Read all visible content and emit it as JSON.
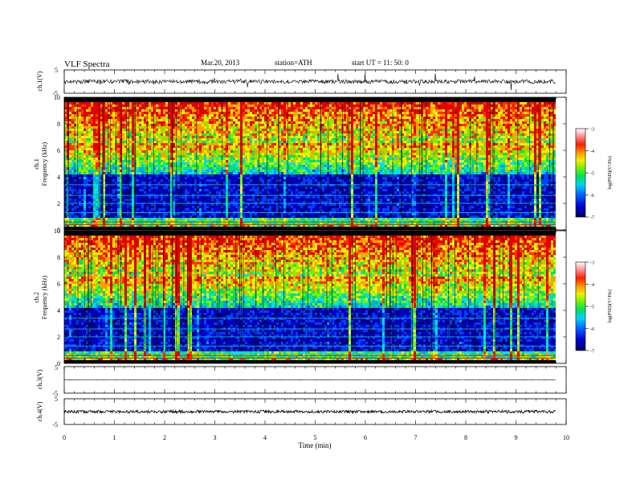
{
  "header": {
    "title": "VLF  Spectra",
    "date": "Mar.20, 2013",
    "station": "station=ATH",
    "start": "start  UT  =    11: 50: 0"
  },
  "chart_data": [
    {
      "type": "line",
      "name": "ch1-waveform",
      "ylabel": "ch.1(V)",
      "ylim": [
        -5,
        5
      ],
      "yticks": [
        "5",
        "-5"
      ],
      "xlim": [
        0,
        10
      ],
      "trace_range": [
        0,
        9.8
      ]
    },
    {
      "type": "heatmap",
      "name": "ch1-spectrogram",
      "ylabel": [
        "ch.1",
        "Frequency  (kHz)"
      ],
      "ylim": [
        0,
        10
      ],
      "yticks": [
        "0",
        "2",
        "4",
        "6",
        "8",
        "10"
      ],
      "xlim": [
        0,
        10
      ],
      "colorbar": {
        "label": "log(PSD)(V²/Hz)",
        "range": [
          -7,
          -3
        ],
        "ticks": [
          "-3",
          "-4",
          "-5",
          "-6",
          "-7"
        ]
      }
    },
    {
      "type": "heatmap",
      "name": "ch2-spectrogram",
      "ylabel": [
        "ch.2",
        "Frequency  (kHz)"
      ],
      "ylim": [
        0,
        10
      ],
      "yticks": [
        "0",
        "2",
        "4",
        "6",
        "8",
        "10"
      ],
      "xlim": [
        0,
        10
      ],
      "colorbar": {
        "label": "log(PSD)(V²/Hz)",
        "range": [
          -7,
          -3
        ],
        "ticks": [
          "-3",
          "-4",
          "-5",
          "-6",
          "-7"
        ]
      }
    },
    {
      "type": "line",
      "name": "ch3-waveform",
      "ylabel": "ch.3(V)",
      "ylim": [
        -5,
        5
      ],
      "yticks": [
        "5",
        "-5"
      ],
      "xlim": [
        0,
        10
      ]
    },
    {
      "type": "line",
      "name": "ch4-waveform",
      "ylabel": "ch.4(V)",
      "ylim": [
        -5,
        5
      ],
      "yticks": [
        "5",
        "-5"
      ],
      "xlim": [
        0,
        10
      ]
    }
  ],
  "xaxis": {
    "label": "Time  (min)",
    "ticks": [
      "0",
      "1",
      "2",
      "3",
      "4",
      "5",
      "6",
      "7",
      "8",
      "9",
      "10"
    ]
  },
  "colors": {
    "colormap": [
      "#000080",
      "#0000c8",
      "#0040ff",
      "#00a0ff",
      "#00e0e0",
      "#00e060",
      "#80f000",
      "#f0f000",
      "#ffa000",
      "#ff3000",
      "#e00000"
    ]
  }
}
